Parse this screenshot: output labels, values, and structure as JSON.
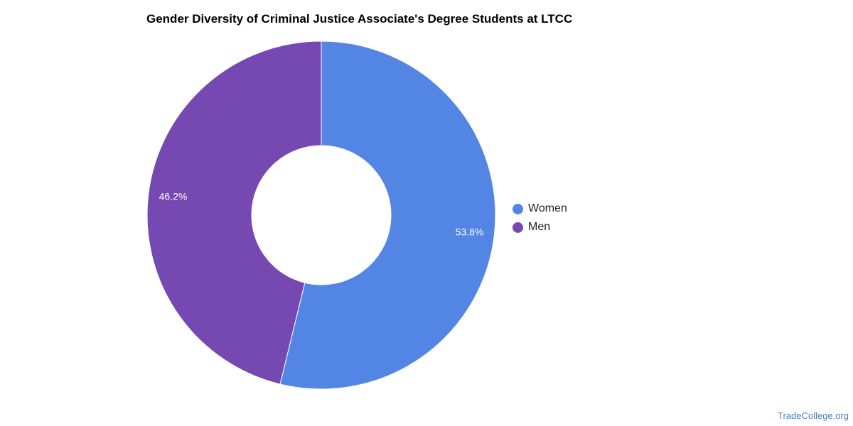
{
  "chart_data": {
    "type": "pie",
    "variant": "donut",
    "title": "Gender Diversity of Criminal Justice Associate's Degree Students at LTCC",
    "categories": [
      "Women",
      "Men"
    ],
    "values": [
      53.8,
      46.2
    ],
    "labels": [
      "53.8%",
      "46.2%"
    ],
    "colors": [
      "#5386e4",
      "#7549b1"
    ],
    "legend_position": "right"
  },
  "legend": {
    "items": [
      {
        "label": "Women",
        "color": "#5386e4"
      },
      {
        "label": "Men",
        "color": "#7549b1"
      }
    ]
  },
  "watermark": "TradeCollege.org"
}
